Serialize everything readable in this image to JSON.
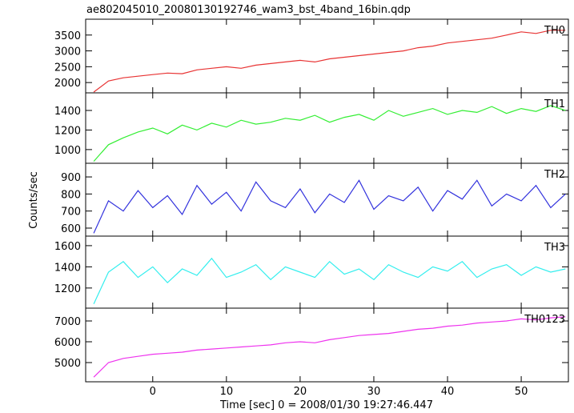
{
  "chart_data": {
    "type": "line",
    "title": "ae802045010_20080130192746_wam3_bst_4band_16bin.qdp",
    "xlabel": "Time [sec] 0 = 2008/01/30 19:27:46.447",
    "ylabel": "Counts/sec",
    "xlim": [
      -9.1,
      56.4
    ],
    "xticks": [
      0,
      10,
      20,
      30,
      40,
      50
    ],
    "x": [
      -8,
      -6,
      -4,
      -2,
      0,
      2,
      4,
      6,
      8,
      10,
      12,
      14,
      16,
      18,
      20,
      22,
      24,
      26,
      28,
      30,
      32,
      34,
      36,
      38,
      40,
      42,
      44,
      46,
      48,
      50,
      52,
      54,
      56
    ],
    "panels": [
      {
        "name": "TH0",
        "color": "#e83333",
        "ylim": [
          1675,
          4000
        ],
        "yticks": [
          2000,
          2500,
          3000,
          3500
        ],
        "values": [
          1700,
          2050,
          2150,
          2200,
          2250,
          2300,
          2280,
          2400,
          2450,
          2500,
          2450,
          2550,
          2600,
          2650,
          2700,
          2650,
          2750,
          2800,
          2850,
          2900,
          2950,
          3000,
          3100,
          3150,
          3250,
          3300,
          3350,
          3400,
          3500,
          3600,
          3550,
          3650,
          3650
        ]
      },
      {
        "name": "TH1",
        "color": "#33ee33",
        "ylim": [
          860,
          1580
        ],
        "yticks": [
          1000,
          1200,
          1400
        ],
        "values": [
          880,
          1050,
          1120,
          1180,
          1220,
          1160,
          1250,
          1200,
          1270,
          1230,
          1300,
          1260,
          1280,
          1320,
          1300,
          1350,
          1280,
          1330,
          1360,
          1300,
          1400,
          1340,
          1380,
          1420,
          1360,
          1400,
          1380,
          1440,
          1370,
          1420,
          1390,
          1450,
          1400
        ]
      },
      {
        "name": "TH2",
        "color": "#3333dd",
        "ylim": [
          553,
          980
        ],
        "yticks": [
          600,
          700,
          800,
          900
        ],
        "values": [
          570,
          760,
          700,
          820,
          720,
          790,
          680,
          850,
          740,
          810,
          700,
          870,
          760,
          720,
          830,
          690,
          800,
          750,
          880,
          710,
          790,
          760,
          840,
          700,
          820,
          770,
          880,
          730,
          800,
          760,
          850,
          720,
          800
        ]
      },
      {
        "name": "TH3",
        "color": "#33eeee",
        "ylim": [
          1010,
          1690
        ],
        "yticks": [
          1200,
          1400,
          1600
        ],
        "values": [
          1050,
          1350,
          1450,
          1300,
          1400,
          1250,
          1380,
          1320,
          1480,
          1300,
          1350,
          1420,
          1280,
          1400,
          1350,
          1300,
          1450,
          1330,
          1380,
          1280,
          1420,
          1350,
          1300,
          1400,
          1360,
          1450,
          1300,
          1380,
          1420,
          1320,
          1400,
          1350,
          1380
        ]
      },
      {
        "name": "TH0123",
        "color": "#ee33ee",
        "ylim": [
          4077,
          7615
        ],
        "yticks": [
          5000,
          6000,
          7000
        ],
        "values": [
          4300,
          5000,
          5200,
          5300,
          5400,
          5450,
          5500,
          5600,
          5650,
          5700,
          5750,
          5800,
          5850,
          5950,
          6000,
          5950,
          6100,
          6200,
          6300,
          6350,
          6400,
          6500,
          6600,
          6650,
          6750,
          6800,
          6900,
          6950,
          7000,
          7100,
          7050,
          7150,
          7200
        ]
      }
    ]
  }
}
